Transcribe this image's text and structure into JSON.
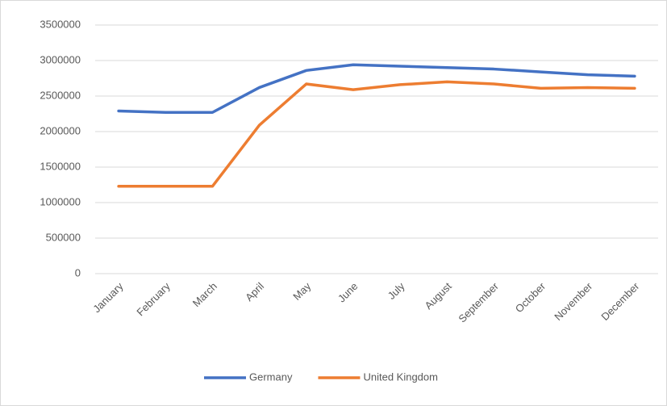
{
  "chart_data": {
    "type": "line",
    "categories": [
      "January",
      "February",
      "March",
      "April",
      "May",
      "June",
      "July",
      "August",
      "September",
      "October",
      "November",
      "December"
    ],
    "series": [
      {
        "name": "Germany",
        "color": "#4472c4",
        "values": [
          2290000,
          2270000,
          2270000,
          2620000,
          2860000,
          2940000,
          2920000,
          2900000,
          2880000,
          2840000,
          2800000,
          2780000
        ]
      },
      {
        "name": "United Kingdom",
        "color": "#ed7d31",
        "values": [
          1230000,
          1230000,
          1230000,
          2090000,
          2670000,
          2590000,
          2660000,
          2700000,
          2670000,
          2610000,
          2620000,
          2610000
        ]
      }
    ],
    "ylim": [
      0,
      3500000
    ],
    "yticks": [
      0,
      500000,
      1000000,
      1500000,
      2000000,
      2500000,
      3000000,
      3500000
    ],
    "grid": true,
    "legend": "bottom"
  }
}
